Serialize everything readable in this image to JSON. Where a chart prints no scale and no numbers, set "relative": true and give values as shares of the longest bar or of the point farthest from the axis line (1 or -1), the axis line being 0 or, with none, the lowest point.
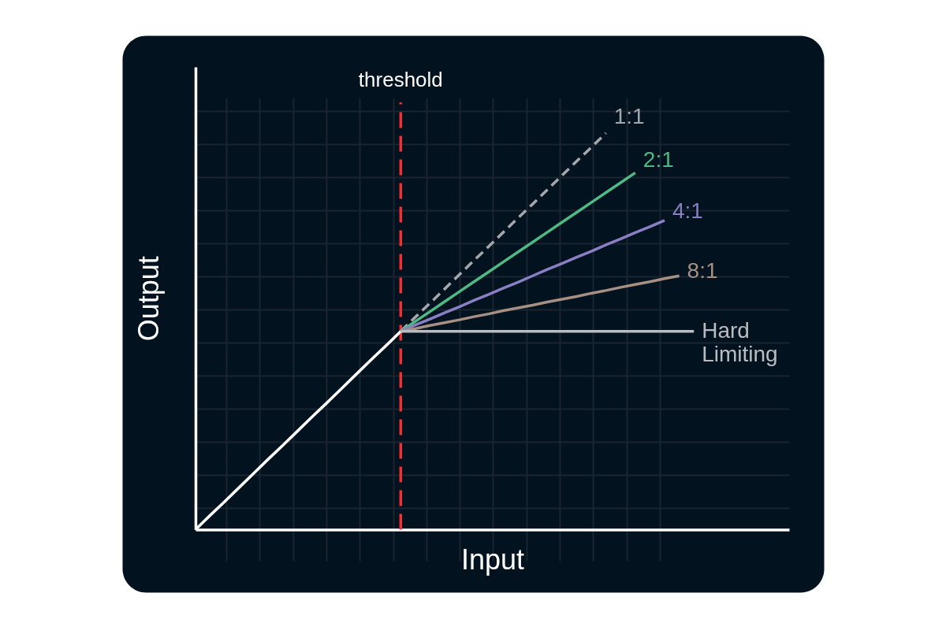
{
  "chart_data": {
    "type": "line",
    "relative": true,
    "xlabel": "Input",
    "ylabel": "Output",
    "legend": false,
    "grid": true,
    "tick_labels": false,
    "marker": "none",
    "line_style": "solid",
    "annotations": [
      "threshold"
    ],
    "categories": [
      null,
      null,
      null,
      null,
      null,
      null,
      null,
      null,
      null,
      null,
      null,
      null,
      null,
      null,
      null,
      null,
      null,
      null,
      null,
      null,
      null,
      null,
      null,
      null,
      null,
      null,
      null,
      null,
      null,
      null,
      null,
      null,
      null,
      null,
      null
    ],
    "series": [
      {
        "color": "#ffffff",
        "values": [
          0,
          0.036,
          0.071,
          0.107,
          0.143,
          0.179,
          0.214,
          0.25,
          0.286,
          0.321,
          0.357,
          0.393,
          0.429,
          0.464,
          0.5,
          null,
          null,
          null,
          null,
          null,
          null,
          null,
          null,
          null,
          null,
          null,
          null,
          null,
          null,
          null,
          null,
          null,
          null,
          null,
          null
        ]
      },
      {
        "name": "1:1",
        "color": "#a4a7ac",
        "line_style": "dashed",
        "values": [
          null,
          null,
          null,
          null,
          null,
          null,
          null,
          null,
          null,
          null,
          null,
          null,
          null,
          null,
          0.5,
          0.536,
          0.571,
          0.607,
          0.643,
          0.679,
          0.714,
          0.75,
          0.786,
          0.821,
          0.857,
          0.893,
          0.929,
          0.964,
          1,
          null,
          null,
          null,
          null,
          null,
          null
        ]
      },
      {
        "name": "2:1",
        "color": "#4fb883",
        "values": [
          null,
          null,
          null,
          null,
          null,
          null,
          null,
          null,
          null,
          null,
          null,
          null,
          null,
          null,
          0.5,
          0.525,
          0.55,
          0.575,
          0.6,
          0.625,
          0.65,
          0.675,
          0.7,
          0.725,
          0.75,
          0.775,
          0.8,
          0.825,
          0.85,
          0.875,
          0.9,
          null,
          null,
          null,
          null
        ]
      },
      {
        "name": "4:1",
        "color": "#8a7fc2",
        "values": [
          null,
          null,
          null,
          null,
          null,
          null,
          null,
          null,
          null,
          null,
          null,
          null,
          null,
          null,
          0.5,
          0.516,
          0.531,
          0.547,
          0.562,
          0.578,
          0.593,
          0.609,
          0.624,
          0.64,
          0.656,
          0.671,
          0.687,
          0.702,
          0.718,
          0.733,
          0.749,
          0.764,
          0.78,
          null,
          null
        ]
      },
      {
        "name": "8:1",
        "color": "#a59083",
        "values": [
          null,
          null,
          null,
          null,
          null,
          null,
          null,
          null,
          null,
          null,
          null,
          null,
          null,
          null,
          0.5,
          0.507,
          0.515,
          0.522,
          0.529,
          0.537,
          0.544,
          0.552,
          0.559,
          0.566,
          0.574,
          0.581,
          0.588,
          0.596,
          0.603,
          0.611,
          0.618,
          0.625,
          0.633,
          0.64,
          null
        ]
      },
      {
        "name": "Hard Limiting",
        "color": "#b9bcc0",
        "values": [
          null,
          null,
          null,
          null,
          null,
          null,
          null,
          null,
          null,
          null,
          null,
          null,
          null,
          null,
          0.5,
          0.5,
          0.5,
          0.5,
          0.5,
          0.5,
          0.5,
          0.5,
          0.5,
          0.5,
          0.5,
          0.5,
          0.5,
          0.5,
          0.5,
          0.5,
          0.5,
          0.5,
          0.5,
          0.5,
          0.5
        ]
      }
    ]
  }
}
